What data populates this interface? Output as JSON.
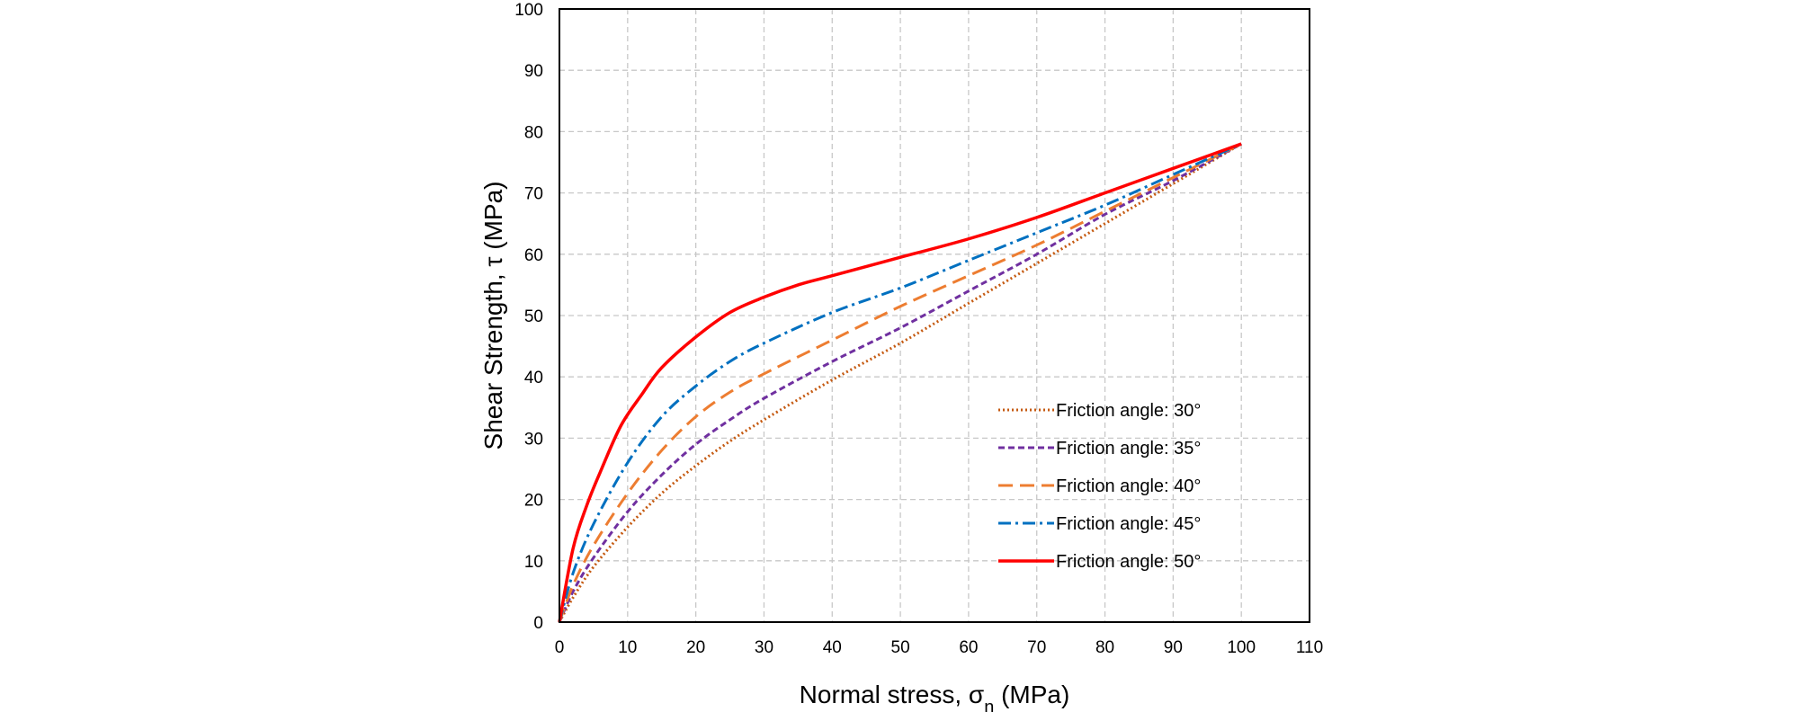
{
  "chart_data": {
    "type": "line",
    "xlabel": "Normal stress, σn (MPa)",
    "xlabel_main": "Normal stress, σ",
    "xlabel_sub": "n",
    "xlabel_tail": " (MPa)",
    "ylabel": "Shear Strength, τ (MPa)",
    "xlim": [
      0,
      110
    ],
    "ylim": [
      0,
      100
    ],
    "xticks": [
      0,
      10,
      20,
      30,
      40,
      50,
      60,
      70,
      80,
      90,
      100,
      110
    ],
    "yticks": [
      0,
      10,
      20,
      30,
      40,
      50,
      60,
      70,
      80,
      90,
      100
    ],
    "grid": true,
    "legend_position": "lower-right",
    "series": [
      {
        "name": "Friction angle: 30°",
        "color": "#C55A11",
        "dash": "dotted",
        "x": [
          0,
          2,
          5,
          10,
          15,
          20,
          25,
          30,
          40,
          50,
          60,
          70,
          80,
          90,
          100
        ],
        "y": [
          0,
          4,
          9,
          15.5,
          21,
          25.5,
          29.5,
          33,
          39.5,
          45.5,
          52,
          58.5,
          65,
          71.5,
          78
        ]
      },
      {
        "name": "Friction angle: 35°",
        "color": "#7030A0",
        "dash": "short-dash",
        "x": [
          0,
          2,
          5,
          10,
          15,
          20,
          25,
          30,
          40,
          50,
          60,
          70,
          80,
          90,
          100
        ],
        "y": [
          0,
          5,
          10.5,
          18,
          24,
          29,
          33,
          36.5,
          42.5,
          48,
          54,
          60,
          66.5,
          72,
          78
        ]
      },
      {
        "name": "Friction angle: 40°",
        "color": "#ED7D31",
        "dash": "long-dash",
        "x": [
          0,
          2,
          5,
          10,
          15,
          20,
          25,
          30,
          40,
          50,
          60,
          70,
          80,
          90,
          100
        ],
        "y": [
          0,
          6,
          12.5,
          21,
          28,
          33.5,
          37.5,
          40.5,
          46,
          51.5,
          56.5,
          61.5,
          67,
          72.5,
          78
        ]
      },
      {
        "name": "Friction angle: 45°",
        "color": "#0070C0",
        "dash": "dash-dot",
        "x": [
          0,
          2,
          5,
          10,
          15,
          20,
          25,
          30,
          40,
          50,
          60,
          70,
          80,
          90,
          100
        ],
        "y": [
          0,
          8,
          16,
          26,
          33.5,
          38.5,
          42.5,
          45.5,
          50.5,
          54.5,
          59,
          63.5,
          68,
          73,
          78
        ]
      },
      {
        "name": "Friction angle: 50°",
        "color": "#FF0000",
        "dash": "solid",
        "x": [
          0,
          2,
          4,
          6,
          9,
          12,
          15,
          20,
          25,
          30,
          35,
          40,
          50,
          60,
          70,
          80,
          90,
          100
        ],
        "y": [
          0,
          12,
          19,
          24.5,
          32,
          37,
          41.5,
          46.5,
          50.5,
          53,
          55,
          56.5,
          59.5,
          62.5,
          66,
          70,
          74,
          78
        ]
      }
    ]
  }
}
